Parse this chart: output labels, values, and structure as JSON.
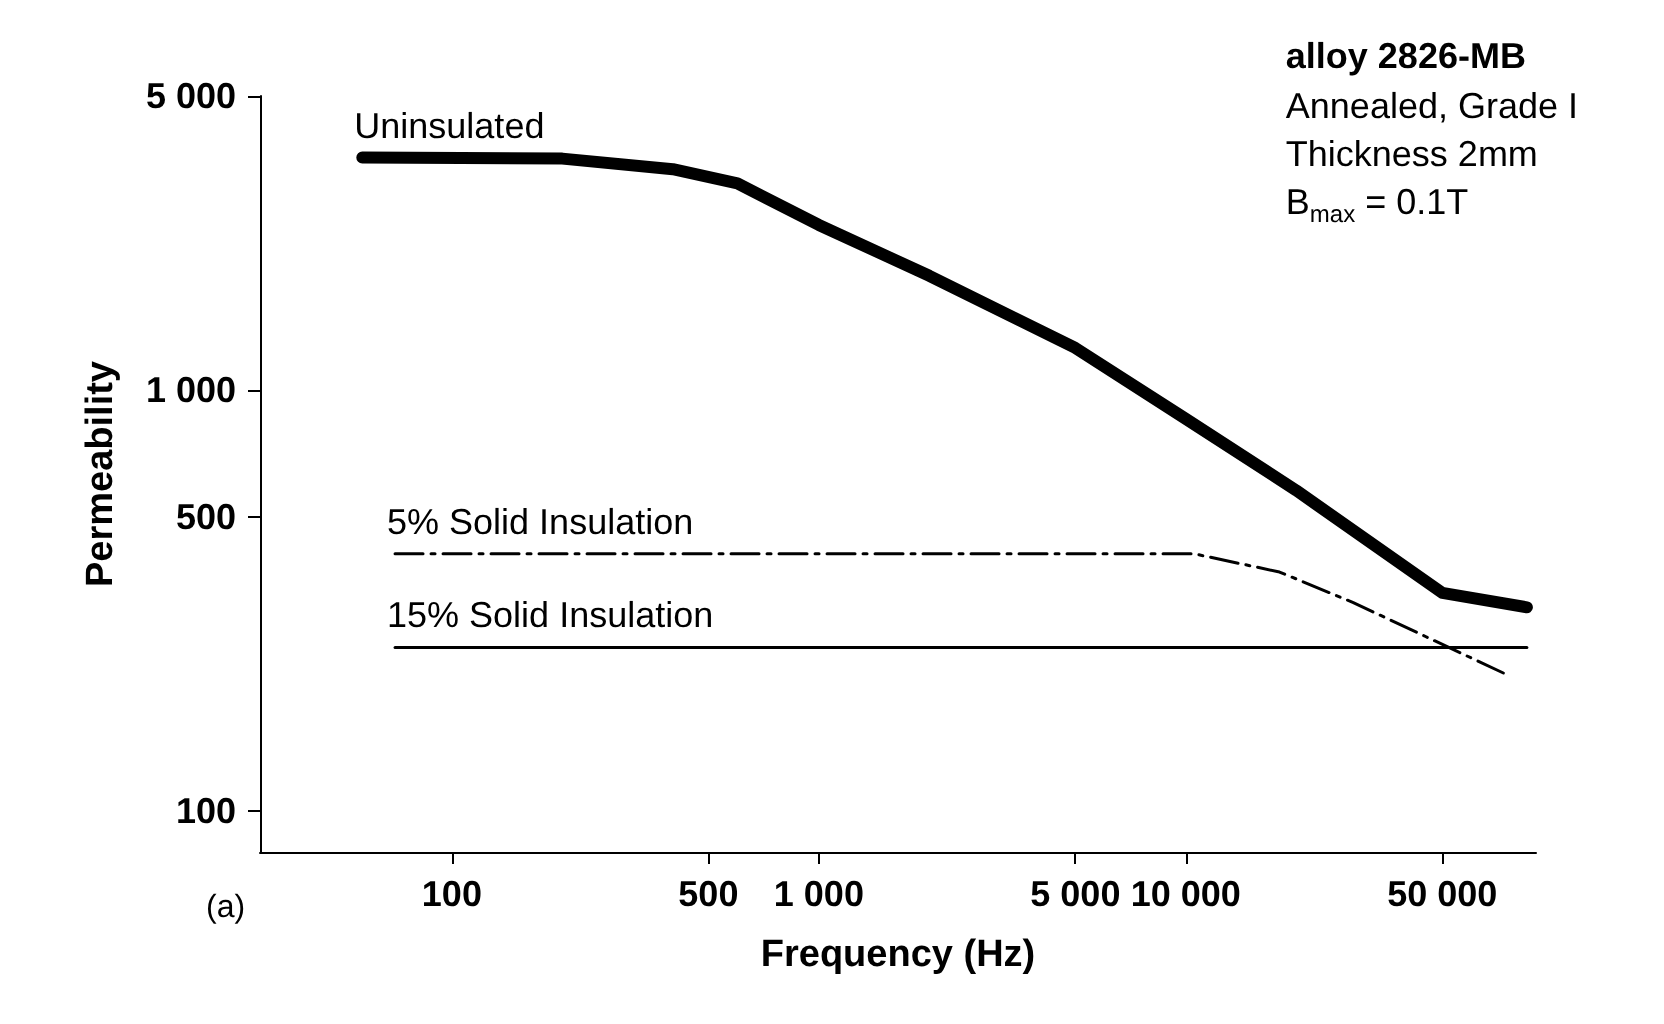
{
  "chart_data": {
    "type": "line",
    "title": "alloy 2826-MB",
    "subtitle": "Annealed, Grade I\nThickness 2mm\nB$_{max}$ = 0.1T",
    "xlabel": "Frequency (Hz)",
    "ylabel": "Permeability",
    "annotations": [
      "(a)"
    ],
    "log": "xy",
    "grid": false,
    "legend": false,
    "marker": "none",
    "xlim": [
      30,
      90000
    ],
    "ylim": [
      80,
      5000
    ],
    "xticks": [
      100,
      500,
      {
        "value": 1000,
        "label": "1 000"
      },
      {
        "value": 5000,
        "label": "5 000"
      },
      {
        "value": 10000,
        "label": "10 000"
      },
      {
        "value": 50000,
        "label": "50 000"
      }
    ],
    "yticks": [
      100,
      500,
      {
        "value": 1000,
        "label": "1 000"
      },
      {
        "value": 5000,
        "label": "5 000"
      }
    ],
    "series": [
      {
        "name": "Uninsulated",
        "color": "#000000",
        "line_style": "solid",
        "x": [
          57,
          200,
          400,
          600,
          1000,
          2000,
          5000,
          10000,
          20000,
          50000,
          85000
        ],
        "values": [
          3570,
          3550,
          3350,
          3100,
          2470,
          1870,
          1260,
          855,
          578,
          330,
          305
        ]
      },
      {
        "name": "5% Solid Insulation",
        "color": "#000000",
        "line_style": "dashed",
        "x": [
          70,
          1000,
          5000,
          10500,
          18000,
          28600,
          45000,
          75000
        ],
        "values": [
          409,
          409,
          409,
          409,
          370,
          313,
          260,
          211
        ]
      },
      {
        "name": "15% Solid Insulation",
        "color": "#000000",
        "line_style": "solid",
        "x": [
          70,
          1000,
          10000,
          42000,
          85000
        ],
        "values": [
          245,
          245,
          245,
          245,
          245
        ]
      }
    ]
  }
}
